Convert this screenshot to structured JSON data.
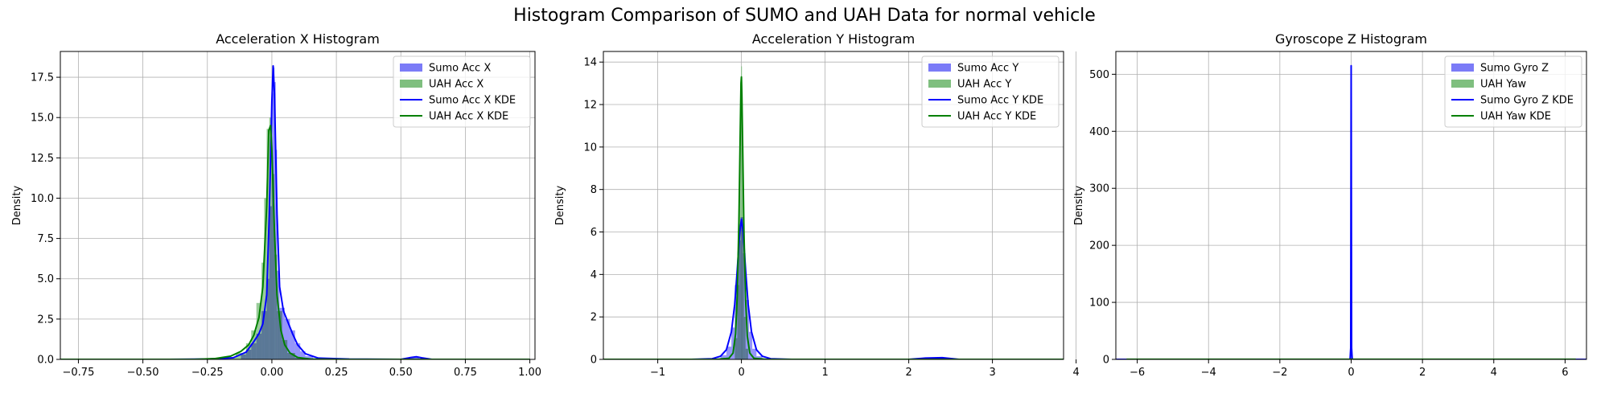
{
  "figure": {
    "suptitle": "Histogram Comparison of SUMO and UAH Data for normal vehicle"
  },
  "colors": {
    "sumo": "#0000ff",
    "uah": "#008000",
    "sumo_hist": "#7b7bf7",
    "uah_hist": "#7fbf7f",
    "overlap": "#3f7b7b"
  },
  "chart_data": [
    {
      "type": "bar",
      "title": "Acceleration X Histogram",
      "xlabel": "",
      "ylabel": "Density",
      "xlim": [
        -0.82,
        1.02
      ],
      "ylim": [
        0,
        19.1
      ],
      "xticks": [
        -0.75,
        -0.5,
        -0.25,
        0.0,
        0.25,
        0.5,
        0.75,
        1.0
      ],
      "xtick_labels": [
        "−0.75",
        "−0.50",
        "−0.25",
        "0.00",
        "0.25",
        "0.50",
        "0.75",
        "1.00"
      ],
      "yticks": [
        0.0,
        2.5,
        5.0,
        7.5,
        10.0,
        12.5,
        15.0,
        17.5
      ],
      "ytick_labels": [
        "0.0",
        "2.5",
        "5.0",
        "7.5",
        "10.0",
        "12.5",
        "15.0",
        "17.5"
      ],
      "grid": true,
      "legend_position": "top-right",
      "legend": [
        "Sumo Acc X",
        "UAH Acc X",
        "Sumo Acc X KDE",
        "UAH Acc X KDE"
      ],
      "series": [
        {
          "name": "Sumo Acc X",
          "kind": "hist",
          "color": "sumo_hist",
          "bins": [
            [
              -0.12,
              -0.1,
              0.3
            ],
            [
              -0.1,
              -0.08,
              0.6
            ],
            [
              -0.08,
              -0.06,
              1.0
            ],
            [
              -0.06,
              -0.04,
              1.6
            ],
            [
              -0.04,
              -0.02,
              3.0
            ],
            [
              -0.02,
              -0.01,
              5.0
            ],
            [
              -0.01,
              0.0,
              9.5
            ],
            [
              0.0,
              0.005,
              16.5
            ],
            [
              0.005,
              0.01,
              18.1
            ],
            [
              0.01,
              0.015,
              17.2
            ],
            [
              0.015,
              0.02,
              13.0
            ],
            [
              0.02,
              0.03,
              5.5
            ],
            [
              0.03,
              0.05,
              3.2
            ],
            [
              0.05,
              0.07,
              2.5
            ],
            [
              0.07,
              0.09,
              1.8
            ],
            [
              0.09,
              0.11,
              1.0
            ],
            [
              0.11,
              0.13,
              0.5
            ],
            [
              0.13,
              0.16,
              0.2
            ],
            [
              0.54,
              0.57,
              0.15
            ]
          ]
        },
        {
          "name": "UAH Acc X",
          "kind": "hist",
          "color": "uah_hist",
          "bins": [
            [
              -0.18,
              -0.14,
              0.1
            ],
            [
              -0.14,
              -0.1,
              0.4
            ],
            [
              -0.1,
              -0.08,
              1.0
            ],
            [
              -0.08,
              -0.06,
              1.8
            ],
            [
              -0.06,
              -0.04,
              3.5
            ],
            [
              -0.04,
              -0.03,
              6.0
            ],
            [
              -0.03,
              -0.02,
              10.0
            ],
            [
              -0.02,
              -0.01,
              14.3
            ],
            [
              -0.01,
              0.0,
              15.0
            ],
            [
              0.0,
              0.01,
              11.5
            ],
            [
              0.01,
              0.02,
              6.5
            ],
            [
              0.02,
              0.04,
              3.0
            ],
            [
              0.04,
              0.06,
              1.2
            ],
            [
              0.06,
              0.09,
              0.4
            ],
            [
              0.09,
              0.13,
              0.1
            ]
          ]
        },
        {
          "name": "Sumo Acc X KDE",
          "kind": "kde",
          "color": "sumo",
          "x": [
            -0.82,
            -0.4,
            -0.25,
            -0.15,
            -0.1,
            -0.07,
            -0.05,
            -0.035,
            -0.02,
            -0.01,
            0.0,
            0.005,
            0.01,
            0.02,
            0.03,
            0.045,
            0.06,
            0.08,
            0.1,
            0.13,
            0.18,
            0.3,
            0.5,
            0.54,
            0.56,
            0.58,
            0.62,
            0.8,
            1.0
          ],
          "y": [
            0,
            0,
            0.02,
            0.1,
            0.45,
            1.1,
            1.6,
            2.2,
            4.0,
            9.0,
            16.0,
            18.2,
            16.5,
            9.0,
            4.5,
            3.0,
            2.4,
            1.6,
            0.9,
            0.35,
            0.08,
            0.02,
            0,
            0.12,
            0.16,
            0.1,
            0,
            0,
            0
          ]
        },
        {
          "name": "UAH Acc X KDE",
          "kind": "kde",
          "color": "uah",
          "x": [
            -0.82,
            -0.3,
            -0.22,
            -0.16,
            -0.12,
            -0.09,
            -0.07,
            -0.05,
            -0.035,
            -0.02,
            -0.012,
            -0.005,
            0.0,
            0.01,
            0.02,
            0.035,
            0.05,
            0.07,
            0.1,
            0.15,
            0.3,
            1.0
          ],
          "y": [
            0,
            0,
            0.05,
            0.2,
            0.5,
            0.9,
            1.5,
            2.6,
            4.5,
            9.5,
            14.2,
            14.5,
            13.0,
            8.0,
            4.0,
            1.8,
            0.9,
            0.4,
            0.12,
            0.02,
            0,
            0
          ]
        }
      ]
    },
    {
      "type": "bar",
      "title": "Acceleration Y Histogram",
      "xlabel": "",
      "ylabel": "Density",
      "xlim": [
        -1.65,
        3.85
      ],
      "ylim": [
        0,
        14.5
      ],
      "xticks": [
        -1,
        0,
        1,
        2,
        3,
        4
      ],
      "xtick_labels": [
        "−1",
        "0",
        "1",
        "2",
        "3",
        "4"
      ],
      "yticks": [
        0,
        2,
        4,
        6,
        8,
        10,
        12,
        14
      ],
      "ytick_labels": [
        "0",
        "2",
        "4",
        "6",
        "8",
        "10",
        "12",
        "14"
      ],
      "grid": true,
      "legend_position": "top-right",
      "legend": [
        "Sumo Acc Y",
        "UAH Acc Y",
        "Sumo Acc Y KDE",
        "UAH Acc Y KDE"
      ],
      "series": [
        {
          "name": "Sumo Acc Y",
          "kind": "hist",
          "color": "sumo_hist",
          "bins": [
            [
              -0.25,
              -0.18,
              0.2
            ],
            [
              -0.18,
              -0.12,
              0.6
            ],
            [
              -0.12,
              -0.08,
              1.5
            ],
            [
              -0.08,
              -0.04,
              3.5
            ],
            [
              -0.04,
              -0.01,
              5.6
            ],
            [
              -0.01,
              0.02,
              6.7
            ],
            [
              0.02,
              0.05,
              5.0
            ],
            [
              0.05,
              0.09,
              2.8
            ],
            [
              0.09,
              0.13,
              1.3
            ],
            [
              0.13,
              0.18,
              0.5
            ],
            [
              0.18,
              0.25,
              0.15
            ]
          ]
        },
        {
          "name": "UAH Acc Y",
          "kind": "hist",
          "color": "uah_hist",
          "bins": [
            [
              -0.08,
              -0.05,
              1.0
            ],
            [
              -0.05,
              -0.03,
              3.5
            ],
            [
              -0.03,
              -0.015,
              8.0
            ],
            [
              -0.015,
              -0.005,
              12.5
            ],
            [
              -0.005,
              0.005,
              13.8
            ],
            [
              0.005,
              0.015,
              11.0
            ],
            [
              0.015,
              0.03,
              6.0
            ],
            [
              0.03,
              0.05,
              2.0
            ],
            [
              0.05,
              0.08,
              0.5
            ]
          ]
        },
        {
          "name": "Sumo Acc Y KDE",
          "kind": "kde",
          "color": "sumo",
          "x": [
            -1.65,
            -0.6,
            -0.35,
            -0.25,
            -0.18,
            -0.12,
            -0.08,
            -0.05,
            -0.02,
            0.0,
            0.02,
            0.05,
            0.08,
            0.12,
            0.18,
            0.25,
            0.35,
            0.6,
            2.0,
            2.2,
            2.4,
            2.6,
            3.85
          ],
          "y": [
            0,
            0,
            0.03,
            0.15,
            0.45,
            1.3,
            2.6,
            4.2,
            6.0,
            6.6,
            6.0,
            4.2,
            2.6,
            1.3,
            0.45,
            0.15,
            0.03,
            0,
            0,
            0.06,
            0.08,
            0,
            0
          ]
        },
        {
          "name": "UAH Acc Y KDE",
          "kind": "kde",
          "color": "uah",
          "x": [
            -1.65,
            -0.3,
            -0.15,
            -0.1,
            -0.07,
            -0.05,
            -0.03,
            -0.015,
            -0.005,
            0.0,
            0.005,
            0.015,
            0.03,
            0.05,
            0.07,
            0.1,
            0.15,
            0.3,
            3.85
          ],
          "y": [
            0,
            0,
            0.05,
            0.3,
            1.2,
            3.0,
            6.5,
            10.5,
            13.0,
            13.3,
            12.5,
            10.0,
            6.0,
            2.8,
            1.1,
            0.3,
            0.05,
            0,
            0
          ]
        }
      ]
    },
    {
      "type": "bar",
      "title": "Gyroscope Z Histogram",
      "xlabel": "",
      "ylabel": "Density",
      "xlim": [
        -6.6,
        6.6
      ],
      "ylim": [
        0,
        540
      ],
      "xticks": [
        -6,
        -4,
        -2,
        0,
        2,
        4,
        6
      ],
      "xtick_labels": [
        "−6",
        "−4",
        "−2",
        "0",
        "2",
        "4",
        "6"
      ],
      "yticks": [
        0,
        100,
        200,
        300,
        400,
        500
      ],
      "ytick_labels": [
        "0",
        "100",
        "200",
        "300",
        "400",
        "500"
      ],
      "grid": true,
      "legend_position": "top-right",
      "legend": [
        "Sumo Gyro Z",
        "UAH Yaw",
        "Sumo Gyro Z KDE",
        "UAH Yaw KDE"
      ],
      "series": [
        {
          "name": "Sumo Gyro Z",
          "kind": "hist",
          "color": "sumo_hist",
          "bins": [
            [
              -0.015,
              0.015,
              515
            ]
          ]
        },
        {
          "name": "UAH Yaw",
          "kind": "hist",
          "color": "uah_hist",
          "bins": [
            [
              -6.3,
              6.3,
              0.1
            ]
          ]
        },
        {
          "name": "Sumo Gyro Z KDE",
          "kind": "kde",
          "color": "sumo",
          "x": [
            -6.6,
            -0.03,
            -0.012,
            -0.004,
            0.0,
            0.004,
            0.012,
            0.03,
            6.6
          ],
          "y": [
            0,
            0,
            20,
            350,
            515,
            350,
            20,
            0,
            0
          ]
        },
        {
          "name": "UAH Yaw KDE",
          "kind": "kde",
          "color": "uah",
          "x": [
            -6.3,
            -4,
            -2,
            0,
            2,
            4,
            6.3
          ],
          "y": [
            0.1,
            0.12,
            0.15,
            0.2,
            0.15,
            0.12,
            0.1
          ]
        }
      ]
    }
  ]
}
